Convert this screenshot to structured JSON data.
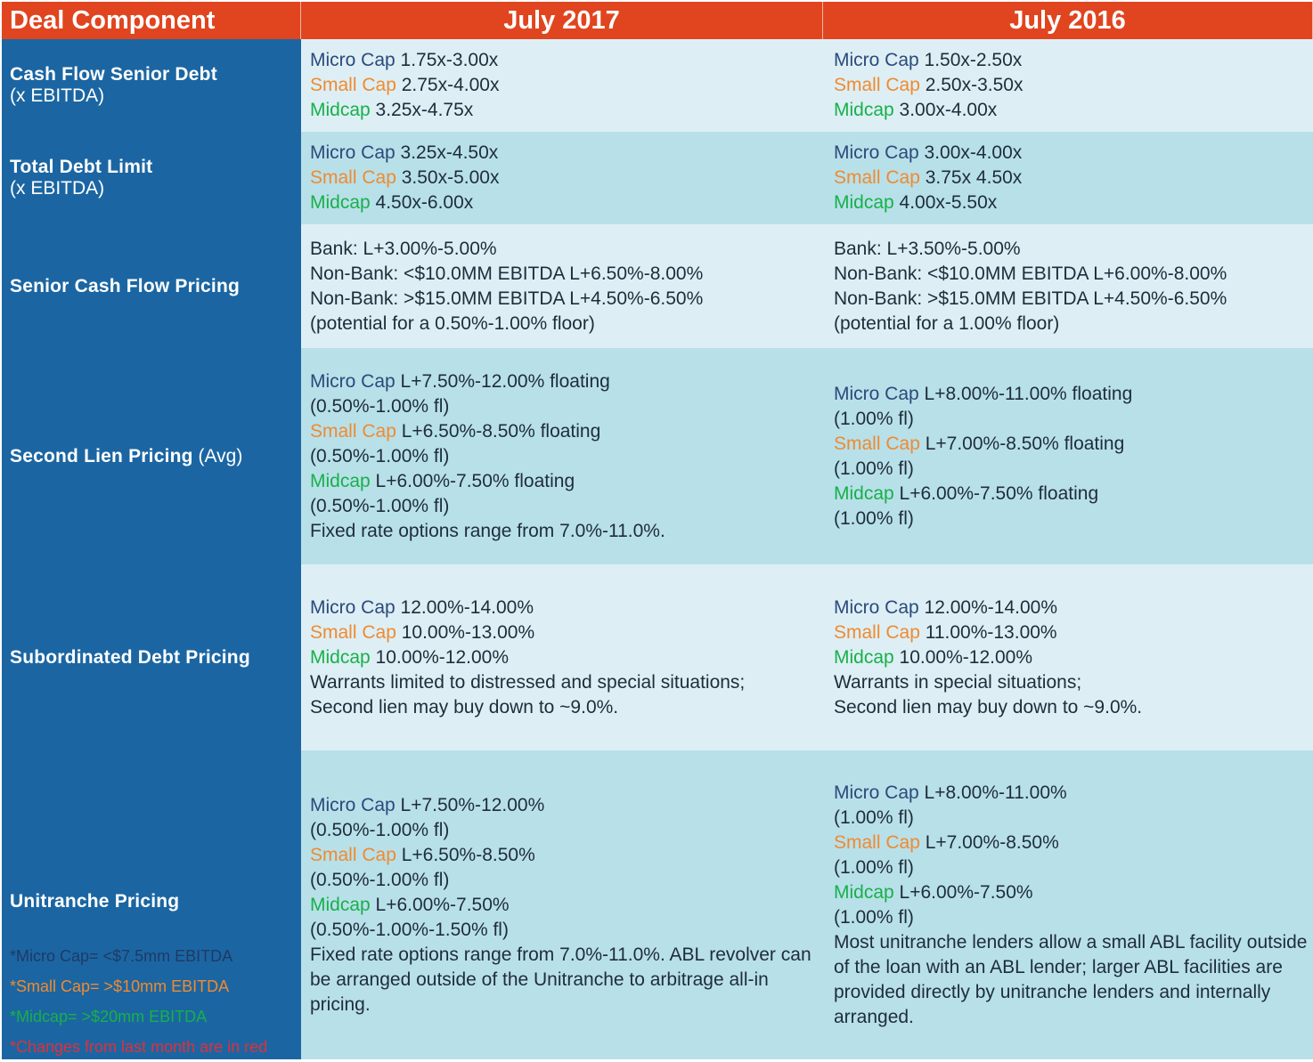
{
  "header": {
    "col1": "Deal Component",
    "col2": "July 2017",
    "col3": "July 2016"
  },
  "rows": {
    "cash_flow": {
      "label": "Cash Flow Senior Debt",
      "sublabel": "(x EBITDA)",
      "y2017": [
        {
          "tier": "Micro Cap",
          "value": "1.75x-3.00x"
        },
        {
          "tier": "Small Cap",
          "value": "2.75x-4.00x"
        },
        {
          "tier": "Midcap",
          "value": "3.25x-4.75x"
        }
      ],
      "y2016": [
        {
          "tier": "Micro Cap",
          "value": "1.50x-2.50x"
        },
        {
          "tier": "Small Cap",
          "value": " 2.50x-3.50x"
        },
        {
          "tier": "Midcap",
          "value": "3.00x-4.00x"
        }
      ]
    },
    "total_debt": {
      "label": "Total Debt Limit",
      "sublabel": "(x EBITDA)",
      "y2017": [
        {
          "tier": "Micro Cap",
          "value": "3.25x-4.50x"
        },
        {
          "tier": "Small Cap",
          "value": "3.50x-5.00x"
        },
        {
          "tier": "Midcap",
          "value": "4.50x-6.00x"
        }
      ],
      "y2016": [
        {
          "tier": "Micro Cap",
          "value": "3.00x-4.00x"
        },
        {
          "tier": "Small Cap",
          "value": "3.75x 4.50x"
        },
        {
          "tier": "Midcap",
          "value": "4.00x-5.50x"
        }
      ]
    },
    "senior_pricing": {
      "label": "Senior Cash Flow Pricing",
      "y2017": [
        "Bank: L+3.00%-5.00%",
        "Non-Bank: <$10.0MM EBITDA L+6.50%-8.00%",
        "Non-Bank: >$15.0MM EBITDA L+4.50%-6.50%",
        "(potential for a 0.50%-1.00% floor)"
      ],
      "y2016": [
        "Bank: L+3.50%-5.00%",
        "Non-Bank: <$10.0MM EBITDA L+6.00%-8.00%",
        "Non-Bank: >$15.0MM EBITDA L+4.50%-6.50%",
        "(potential for a 1.00% floor)"
      ]
    },
    "second_lien": {
      "label": "Second Lien Pricing",
      "label_suffix": "(Avg)",
      "y2017": {
        "micro": "L+7.50%-12.00% floating",
        "micro_fl": "(0.50%-1.00% fl)",
        "small": "L+6.50%-8.50% floating",
        "small_fl": "(0.50%-1.00% fl)",
        "mid": "L+6.00%-7.50% floating",
        "mid_fl": "(0.50%-1.00% fl)",
        "note": "Fixed rate options range from 7.0%-11.0%."
      },
      "y2016": {
        "micro": "L+8.00%-11.00% floating",
        "micro_fl": "(1.00% fl)",
        "small": "L+7.00%-8.50% floating",
        "small_fl": "(1.00% fl)",
        "mid": "L+6.00%-7.50% floating",
        "mid_fl": "(1.00% fl)"
      }
    },
    "subordinated": {
      "label": "Subordinated Debt Pricing",
      "y2017": {
        "micro": "12.00%-14.00%",
        "small": "10.00%-13.00%",
        "mid": "10.00%-12.00%",
        "note1": "Warrants limited to distressed and special situations;",
        "note2": "Second lien may buy down to ~9.0%."
      },
      "y2016": {
        "micro": "12.00%-14.00%",
        "small": "11.00%-13.00%",
        "mid": "10.00%-12.00%",
        "note1": "Warrants in special situations;",
        "note2": "Second lien may buy down to ~9.0%."
      }
    },
    "unitranche": {
      "label": "Unitranche Pricing",
      "y2017": {
        "micro": "L+7.50%-12.00%",
        "micro_fl": "(0.50%-1.00% fl)",
        "small": "L+6.50%-8.50%",
        "small_fl": "(0.50%-1.00% fl)",
        "mid": "L+6.00%-7.50%",
        "mid_fl": "(0.50%-1.00%-1.50% fl)",
        "note": "Fixed rate options range from 7.0%-11.0%. ABL revolver can be arranged outside of the Unitranche to arbitrage all-in pricing."
      },
      "y2016": {
        "micro": "L+8.00%-11.00%",
        "micro_fl": "(1.00% fl)",
        "small": "L+7.00%-8.50%",
        "small_fl": "(1.00% fl)",
        "mid": "L+6.00%-7.50%",
        "mid_fl": "(1.00% fl)",
        "note": "Most unitranche lenders allow a small ABL facility outside of the loan with an ABL lender; larger ABL facilities are provided directly by unitranche lenders and internally arranged."
      }
    }
  },
  "tiers": {
    "micro": "Micro Cap",
    "small": "Small Cap",
    "mid": "Midcap"
  },
  "notes": {
    "micro": "*Micro Cap= <$7.5mm EBITDA",
    "small": "*Small Cap= >$10mm EBITDA",
    "mid": "*Midcap= >$20mm EBITDA",
    "changes": "*Changes from last month are in red"
  },
  "colors": {
    "header_bg": "#e0451f",
    "label_bg": "#1b66a2",
    "row_light": "#ddeff5",
    "row_dark": "#b8e0e9",
    "micro": "#2c4a7a",
    "small": "#f08a30",
    "mid": "#18b04a",
    "changes": "#e0303a"
  }
}
